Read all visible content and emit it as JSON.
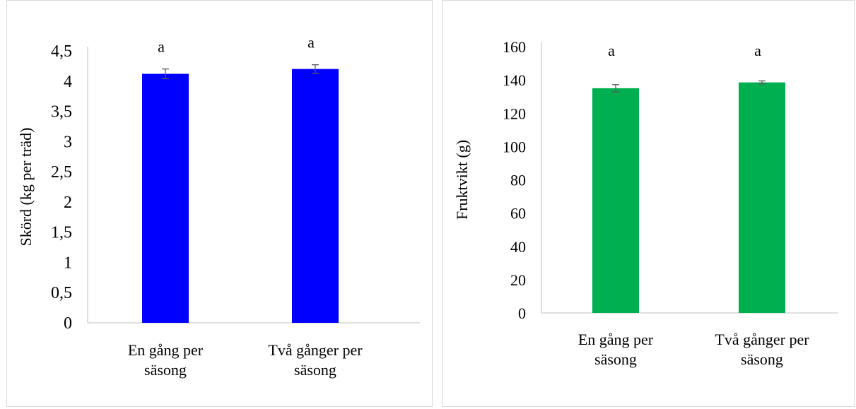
{
  "colors": {
    "axis": "#bfbfbf",
    "error_bar": "#595959",
    "panel_border": "#d9d9d9"
  },
  "chart_data": [
    {
      "type": "bar",
      "categories": [
        [
          "En gång per",
          "säsong"
        ],
        [
          "Två gånger per",
          "säsong"
        ]
      ],
      "values": [
        4.12,
        4.2
      ],
      "errors": [
        0.08,
        0.07
      ],
      "significance": [
        "a",
        "a"
      ],
      "ylabel": "Skörd (kg per träd)",
      "xlabel": "",
      "ylim": [
        0,
        4.5
      ],
      "yticks": [
        "0",
        "0,5",
        "1",
        "1,5",
        "2",
        "2,5",
        "3",
        "3,5",
        "4",
        "4,5"
      ],
      "bar_color": "#0000ff",
      "grid": false
    },
    {
      "type": "bar",
      "categories": [
        [
          "En gång per",
          "säsong"
        ],
        [
          "Två gånger per",
          "säsong"
        ]
      ],
      "values": [
        135,
        138.5
      ],
      "errors": [
        2.2,
        0.9
      ],
      "significance": [
        "a",
        "a"
      ],
      "ylabel": "Fruktvikt (g)",
      "xlabel": "",
      "ylim": [
        0,
        160
      ],
      "yticks": [
        "0",
        "20",
        "40",
        "60",
        "80",
        "100",
        "120",
        "140",
        "160"
      ],
      "bar_color": "#00b050",
      "grid": false
    }
  ]
}
